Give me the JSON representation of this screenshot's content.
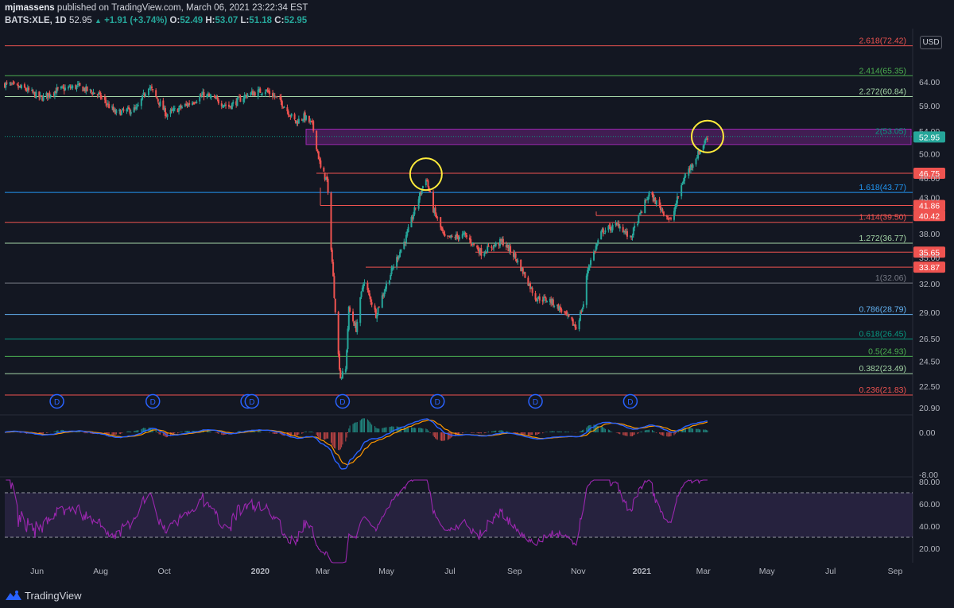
{
  "header": {
    "author": "mjmassens",
    "published": "published on TradingView.com, March 06, 2021 23:22:34 EST",
    "symbol": "BATS:XLE, 1D",
    "price": "52.95",
    "change_arrow": "▲",
    "change": "+1.91 (+3.74%)",
    "o_label": "O:",
    "o_value": "52.49",
    "h_label": "H:",
    "h_value": "53.07",
    "l_label": "L:",
    "l_value": "51.18",
    "c_label": "C:",
    "c_value": "52.95"
  },
  "currency": "USD",
  "footer": {
    "brand": "TradingView"
  },
  "colors": {
    "background": "#131722",
    "up": "#26a69a",
    "down": "#ef5350",
    "rsi": "#9c27b0",
    "macd": "#2962ff",
    "signal": "#ff9800"
  },
  "chart_data": {
    "type": "candlestick",
    "x_ticks": [
      "Jun",
      "Aug",
      "Oct",
      "2020",
      "Mar",
      "May",
      "Jul",
      "Sep",
      "Nov",
      "2021",
      "Mar",
      "May",
      "Jul",
      "Sep"
    ],
    "price_axis": [
      "64.00",
      "59.00",
      "54.00",
      "50.00",
      "46.00",
      "43.00",
      "38.00",
      "35.00",
      "32.00",
      "29.00",
      "26.50",
      "24.50",
      "22.50",
      "20.90"
    ],
    "price_axis_scale": "log",
    "price_range": [
      20.5,
      76
    ],
    "last_price_label": "52.95",
    "fib_levels": [
      {
        "label": "2.618(72.42)",
        "value": 72.42,
        "color": "#ef5350"
      },
      {
        "label": "2.414(65.35)",
        "value": 65.35,
        "color": "#4caf50"
      },
      {
        "label": "2.272(60.84)",
        "value": 60.84,
        "color": "#a5d6a7"
      },
      {
        "label": "2(53.05)",
        "value": 53.05,
        "color": "#089981"
      },
      {
        "label": "1.618(43.77)",
        "value": 43.77,
        "color": "#2196f3"
      },
      {
        "label": "1.414(39.50)",
        "value": 39.5,
        "color": "#ef5350"
      },
      {
        "label": "1.272(36.77)",
        "value": 36.77,
        "color": "#a5d6a7"
      },
      {
        "label": "1(32.06)",
        "value": 32.06,
        "color": "#787b86"
      },
      {
        "label": "0.786(28.79)",
        "value": 28.79,
        "color": "#64b5f6"
      },
      {
        "label": "0.618(26.45)",
        "value": 26.45,
        "color": "#089981"
      },
      {
        "label": "0.5(24.93)",
        "value": 24.93,
        "color": "#4caf50"
      },
      {
        "label": "0.382(23.49)",
        "value": 23.49,
        "color": "#a5d6a7"
      },
      {
        "label": "0.236(21.83)",
        "value": 21.83,
        "color": "#ef5350"
      }
    ],
    "horizontal_levels": [
      {
        "value": 46.75,
        "label": "46.75"
      },
      {
        "value": 41.86,
        "label": "41.86"
      },
      {
        "value": 40.42,
        "label": "40.42"
      },
      {
        "value": 35.65,
        "label": "35.65"
      },
      {
        "value": 33.87,
        "label": "33.87"
      }
    ],
    "zone": {
      "from": 51.6,
      "to": 54.4
    },
    "highlight_circles": [
      {
        "date": "2020-06-08",
        "price": 46.6
      },
      {
        "date": "2021-03-05",
        "price": 53.05
      }
    ],
    "dividend_markers": [
      "2019-06-20",
      "2019-09-20",
      "2019-12-20",
      "2019-12-24",
      "2020-03-20",
      "2020-06-19",
      "2020-09-21",
      "2020-12-21"
    ],
    "dividend_marker_text": "D",
    "price_anchors": [
      [
        "2019-05-01",
        63.5
      ],
      [
        "2019-05-20",
        62.5
      ],
      [
        "2019-06-05",
        60.5
      ],
      [
        "2019-06-20",
        62.2
      ],
      [
        "2019-07-10",
        63.0
      ],
      [
        "2019-07-30",
        61.2
      ],
      [
        "2019-08-15",
        57.5
      ],
      [
        "2019-09-05",
        58.3
      ],
      [
        "2019-09-16",
        63.2
      ],
      [
        "2019-10-03",
        57.2
      ],
      [
        "2019-10-25",
        59.4
      ],
      [
        "2019-11-08",
        61.3
      ],
      [
        "2019-12-02",
        58.8
      ],
      [
        "2019-12-20",
        61.3
      ],
      [
        "2020-01-06",
        62.2
      ],
      [
        "2020-01-20",
        60.0
      ],
      [
        "2020-02-04",
        55.7
      ],
      [
        "2020-02-12",
        56.8
      ],
      [
        "2020-02-20",
        55.2
      ],
      [
        "2020-02-28",
        47.5
      ],
      [
        "2020-03-05",
        45.6
      ],
      [
        "2020-03-09",
        36.3
      ],
      [
        "2020-03-12",
        30.8
      ],
      [
        "2020-03-16",
        25.0
      ],
      [
        "2020-03-18",
        23.2
      ],
      [
        "2020-03-23",
        23.8
      ],
      [
        "2020-03-26",
        29.3
      ],
      [
        "2020-04-02",
        27.4
      ],
      [
        "2020-04-09",
        32.3
      ],
      [
        "2020-04-21",
        28.8
      ],
      [
        "2020-05-07",
        33.7
      ],
      [
        "2020-05-20",
        37.5
      ],
      [
        "2020-06-08",
        46.1
      ],
      [
        "2020-06-15",
        41.3
      ],
      [
        "2020-06-26",
        37.3
      ],
      [
        "2020-07-15",
        37.8
      ],
      [
        "2020-07-31",
        35.6
      ],
      [
        "2020-08-20",
        37.0
      ],
      [
        "2020-09-01",
        35.2
      ],
      [
        "2020-09-21",
        30.5
      ],
      [
        "2020-10-05",
        30.2
      ],
      [
        "2020-10-16",
        29.2
      ],
      [
        "2020-10-30",
        27.5
      ],
      [
        "2020-11-06",
        29.8
      ],
      [
        "2020-11-10",
        33.6
      ],
      [
        "2020-11-24",
        38.3
      ],
      [
        "2020-12-10",
        39.2
      ],
      [
        "2020-12-21",
        37.3
      ],
      [
        "2021-01-08",
        43.6
      ],
      [
        "2021-01-29",
        39.6
      ],
      [
        "2021-02-10",
        45.8
      ],
      [
        "2021-02-25",
        50.3
      ],
      [
        "2021-03-05",
        52.95
      ]
    ],
    "macd": {
      "axis_ticks": [
        "0.00",
        "-8.00"
      ]
    },
    "rsi": {
      "axis_ticks": [
        "80.00",
        "60.00",
        "40.00",
        "20.00"
      ],
      "upper_band": 70,
      "lower_band": 30
    }
  }
}
